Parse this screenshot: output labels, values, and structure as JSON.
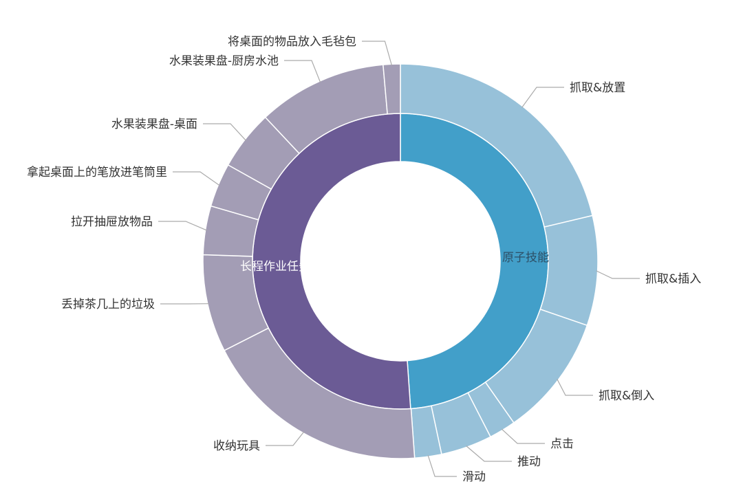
{
  "chart_data": {
    "type": "sunburst",
    "title": "",
    "colors": {
      "inner": [
        "#429fc9",
        "#6b5b95"
      ],
      "outer": [
        "#97c1d9",
        "#a39db5"
      ],
      "label_text": "#333333",
      "leader_line": "#aaaaaa"
    },
    "inner": [
      {
        "name": "原子技能",
        "value": 48.9
      },
      {
        "name": "长程作业任务",
        "value": 51.1
      }
    ],
    "outer": [
      {
        "name": "抓取&放置",
        "parent": "原子技能",
        "value": 21.3
      },
      {
        "name": "抓取&插入",
        "parent": "原子技能",
        "value": 9.0
      },
      {
        "name": "抓取&倒入",
        "parent": "原子技能",
        "value": 10.0
      },
      {
        "name": "点击",
        "parent": "原子技能",
        "value": 2.2
      },
      {
        "name": "推动",
        "parent": "原子技能",
        "value": 4.2
      },
      {
        "name": "滑动",
        "parent": "原子技能",
        "value": 2.2
      },
      {
        "name": "收纳玩具",
        "parent": "长程作业任务",
        "value": 18.7
      },
      {
        "name": "丢掉茶几上的垃圾",
        "parent": "长程作业任务",
        "value": 8.0
      },
      {
        "name": "拉开抽屉放物品",
        "parent": "长程作业任务",
        "value": 4.0
      },
      {
        "name": "拿起桌面上的笔放进笔筒里",
        "parent": "长程作业任务",
        "value": 3.6
      },
      {
        "name": "水果装果盘-桌面",
        "parent": "长程作业任务",
        "value": 4.9
      },
      {
        "name": "水果装果盘-厨房水池",
        "parent": "长程作业任务",
        "value": 10.6
      },
      {
        "name": "将桌面的物品放入毛毡包",
        "parent": "长程作业任务",
        "value": 1.4
      }
    ]
  }
}
